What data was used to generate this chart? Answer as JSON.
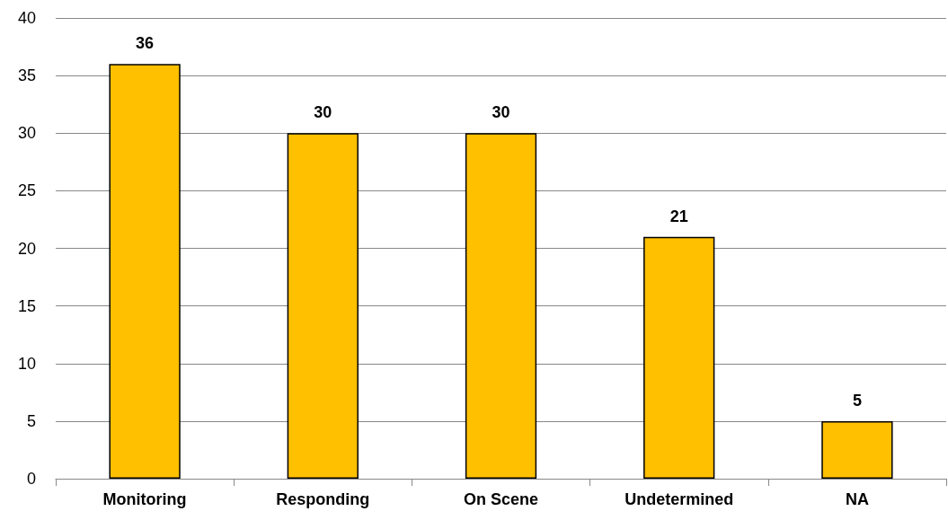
{
  "chart_data": {
    "type": "bar",
    "categories": [
      "Monitoring",
      "Responding",
      "On Scene",
      "Undetermined",
      "NA"
    ],
    "values": [
      36,
      30,
      30,
      21,
      5
    ],
    "color": "#ffc000",
    "ylim": [
      0,
      40
    ],
    "yticks": [
      0,
      5,
      10,
      15,
      20,
      25,
      30,
      35,
      40
    ],
    "grid": "y",
    "data_labels": true
  }
}
